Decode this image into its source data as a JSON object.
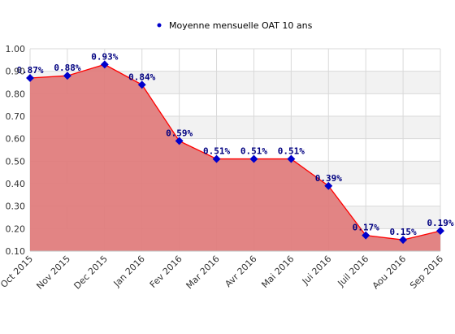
{
  "chart_data": {
    "type": "area",
    "categories": [
      "Oct 2015",
      "Nov 2015",
      "Dec 2015",
      "Jan 2016",
      "Fev 2016",
      "Mar 2016",
      "Avr 2016",
      "Mai 2016",
      "Jui 2016",
      "Juil 2016",
      "Aou 2016",
      "Sep 2016"
    ],
    "series": [
      {
        "name": "Moyenne mensuelle OAT 10 ans",
        "values": [
          0.87,
          0.88,
          0.93,
          0.84,
          0.59,
          0.51,
          0.51,
          0.51,
          0.39,
          0.17,
          0.15,
          0.19
        ],
        "labels": [
          "0.87%",
          "0.88%",
          "0.93%",
          "0.84%",
          "0.59%",
          "0.51%",
          "0.51%",
          "0.51%",
          "0.39%",
          "0.17%",
          "0.15%",
          "0.19%"
        ]
      }
    ],
    "y_ticks": [
      "0.10",
      "0.20",
      "0.30",
      "0.40",
      "0.50",
      "0.60",
      "0.70",
      "0.80",
      "0.90",
      "1.00"
    ],
    "ylim": [
      0.1,
      1.0
    ],
    "grid": true,
    "legend_position": "top-center",
    "colors": {
      "area_fill": "#e07d7d",
      "line": "#ff0000",
      "marker": "#0000cc",
      "label": "#000080",
      "band": "#f2f2f2",
      "grid": "#d9d9d9"
    }
  }
}
